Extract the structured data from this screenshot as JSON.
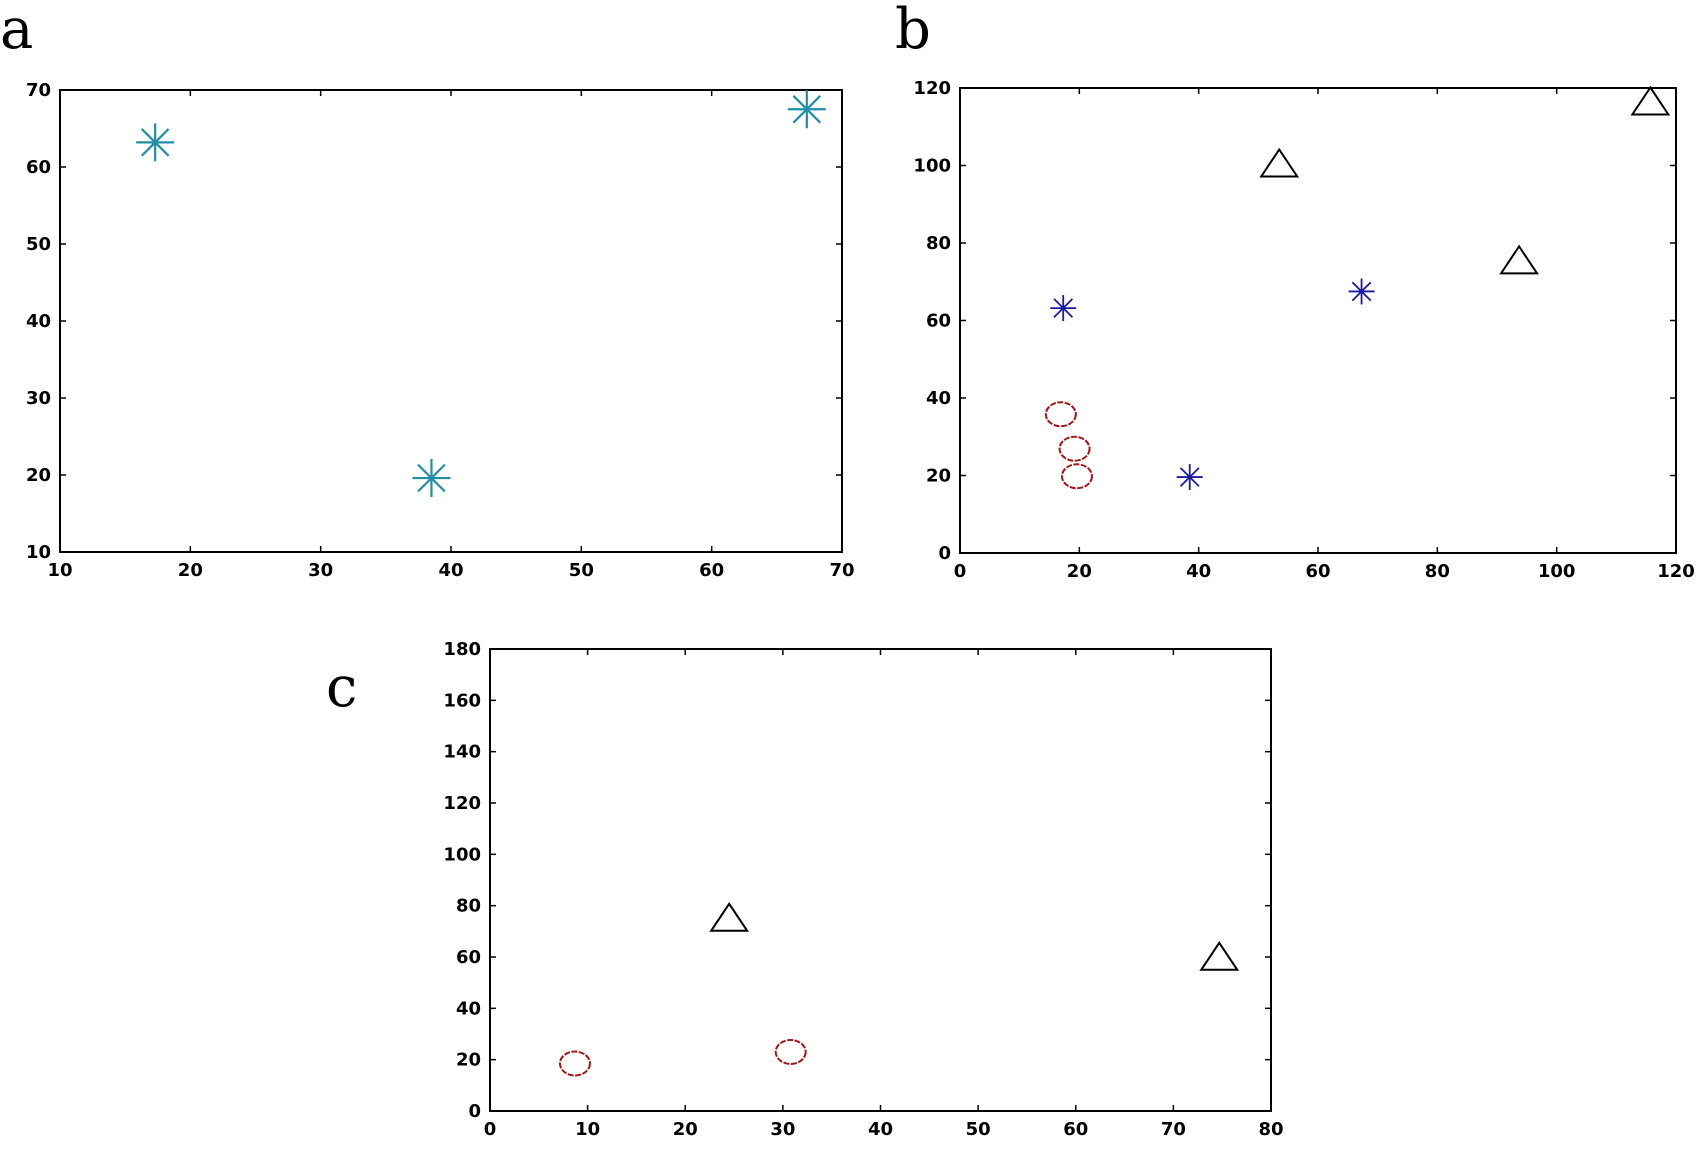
{
  "figure": {
    "panels": [
      {
        "letter": "a"
      },
      {
        "letter": "b"
      },
      {
        "letter": "c"
      }
    ]
  },
  "colors": {
    "cyan_star": "#1f8fa8",
    "blue_star": "#1a1aa0",
    "red_circle": "#a01818",
    "black_triangle": "#000000"
  },
  "chart_data": [
    {
      "type": "scatter",
      "panel": "a",
      "xlim": [
        10,
        70
      ],
      "ylim": [
        10,
        70
      ],
      "xticks": [
        10,
        20,
        30,
        40,
        50,
        60,
        70
      ],
      "yticks": [
        10,
        20,
        30,
        40,
        50,
        60,
        70
      ],
      "grid": false,
      "series": [
        {
          "marker": "star",
          "color": "#1f8fa8",
          "points": [
            [
              17.3,
              63.2
            ],
            [
              38.5,
              19.6
            ],
            [
              67.3,
              67.5
            ]
          ]
        }
      ]
    },
    {
      "type": "scatter",
      "panel": "b",
      "xlim": [
        0,
        120
      ],
      "ylim": [
        0,
        120
      ],
      "xticks": [
        0,
        20,
        40,
        60,
        80,
        100,
        120
      ],
      "yticks": [
        0,
        20,
        40,
        60,
        80,
        100,
        120
      ],
      "grid": false,
      "series": [
        {
          "marker": "star",
          "color": "#1a1aa0",
          "points": [
            [
              17.3,
              63.2
            ],
            [
              38.5,
              19.6
            ],
            [
              67.3,
              67.5
            ]
          ]
        },
        {
          "marker": "circle",
          "color": "#a01818",
          "points": [
            [
              16.9,
              35.8
            ],
            [
              19.2,
              26.9
            ],
            [
              19.6,
              19.8
            ]
          ]
        },
        {
          "marker": "triangle",
          "color": "#000000",
          "points": [
            [
              53.5,
              100.0
            ],
            [
              93.7,
              75.0
            ],
            [
              115.7,
              116.0
            ]
          ]
        }
      ]
    },
    {
      "type": "scatter",
      "panel": "c",
      "xlim": [
        0,
        80
      ],
      "ylim": [
        0,
        180
      ],
      "xticks": [
        0,
        10,
        20,
        30,
        40,
        50,
        60,
        70,
        80
      ],
      "yticks": [
        0,
        20,
        40,
        60,
        80,
        100,
        120,
        140,
        160,
        180
      ],
      "grid": false,
      "series": [
        {
          "marker": "circle",
          "color": "#a01818",
          "points": [
            [
              8.7,
              18.5
            ],
            [
              30.8,
              23.0
            ]
          ]
        },
        {
          "marker": "triangle",
          "color": "#000000",
          "points": [
            [
              24.5,
              74.5
            ],
            [
              74.7,
              59.3
            ]
          ]
        }
      ]
    }
  ]
}
